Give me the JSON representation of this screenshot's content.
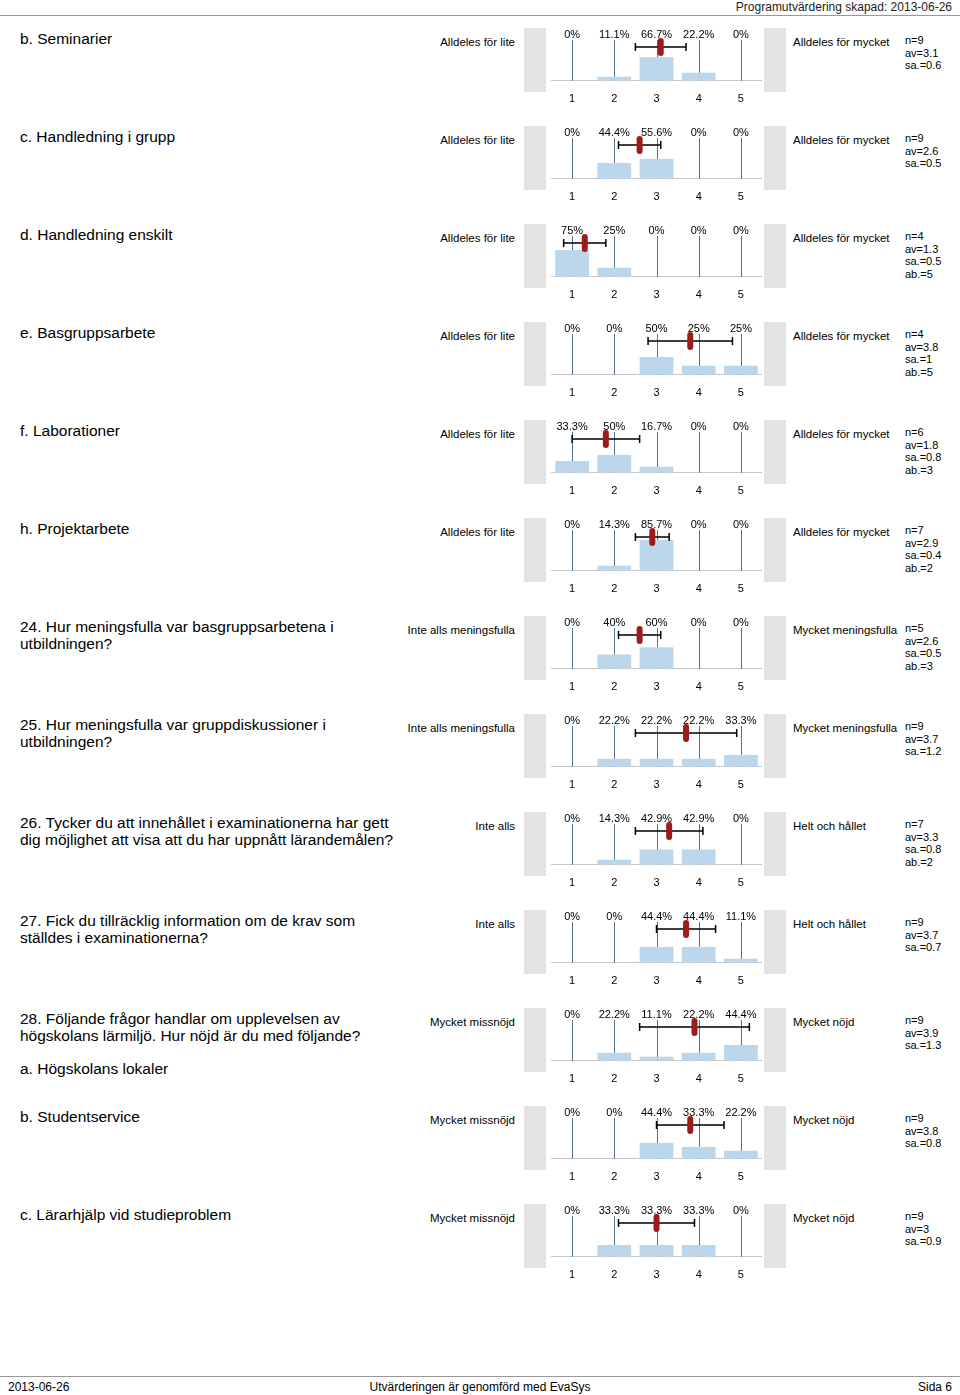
{
  "header": {
    "text": "Programutvärdering skapad: 2013-06-26"
  },
  "footer": {
    "left": "2013-06-26",
    "center": "Utvärderingen är genomförd med EvaSys",
    "right": "Sida 6"
  },
  "stat_labels": {
    "n": "n=",
    "av": "av=",
    "sa": "sa.=",
    "ab": "ab.="
  },
  "chart_data": [
    {
      "type": "bar",
      "title": "b. Seminarier",
      "scale_low": "Alldeles för lite",
      "scale_high": "Alldeles för mycket",
      "x": [
        1,
        2,
        3,
        4,
        5
      ],
      "values": [
        0,
        11.1,
        66.7,
        22.2,
        0
      ],
      "value_labels": [
        "0%",
        "11.1%",
        "66.7%",
        "22.2%",
        "0%"
      ],
      "stats": {
        "n": 9,
        "av": 3.1,
        "sa": 0.6
      }
    },
    {
      "type": "bar",
      "title": "c. Handledning i grupp",
      "scale_low": "Alldeles för lite",
      "scale_high": "Alldeles för mycket",
      "x": [
        1,
        2,
        3,
        4,
        5
      ],
      "values": [
        0,
        44.4,
        55.6,
        0,
        0
      ],
      "value_labels": [
        "0%",
        "44.4%",
        "55.6%",
        "0%",
        "0%"
      ],
      "stats": {
        "n": 9,
        "av": 2.6,
        "sa": 0.5
      }
    },
    {
      "type": "bar",
      "title": "d. Handledning enskilt",
      "scale_low": "Alldeles för lite",
      "scale_high": "Alldeles för mycket",
      "x": [
        1,
        2,
        3,
        4,
        5
      ],
      "values": [
        75,
        25,
        0,
        0,
        0
      ],
      "value_labels": [
        "75%",
        "25%",
        "0%",
        "0%",
        "0%"
      ],
      "stats": {
        "n": 4,
        "av": 1.3,
        "sa": 0.5,
        "ab": 5
      }
    },
    {
      "type": "bar",
      "title": "e. Basgruppsarbete",
      "scale_low": "Alldeles för lite",
      "scale_high": "Alldeles för mycket",
      "x": [
        1,
        2,
        3,
        4,
        5
      ],
      "values": [
        0,
        0,
        50,
        25,
        25
      ],
      "value_labels": [
        "0%",
        "0%",
        "50%",
        "25%",
        "25%"
      ],
      "stats": {
        "n": 4,
        "av": 3.8,
        "sa": 1,
        "ab": 5
      }
    },
    {
      "type": "bar",
      "title": "f. Laborationer",
      "scale_low": "Alldeles för lite",
      "scale_high": "Alldeles för mycket",
      "x": [
        1,
        2,
        3,
        4,
        5
      ],
      "values": [
        33.3,
        50,
        16.7,
        0,
        0
      ],
      "value_labels": [
        "33.3%",
        "50%",
        "16.7%",
        "0%",
        "0%"
      ],
      "stats": {
        "n": 6,
        "av": 1.8,
        "sa": 0.8,
        "ab": 3
      }
    },
    {
      "type": "bar",
      "title": "h. Projektarbete",
      "scale_low": "Alldeles för lite",
      "scale_high": "Alldeles för mycket",
      "x": [
        1,
        2,
        3,
        4,
        5
      ],
      "values": [
        0,
        14.3,
        85.7,
        0,
        0
      ],
      "value_labels": [
        "0%",
        "14.3%",
        "85.7%",
        "0%",
        "0%"
      ],
      "stats": {
        "n": 7,
        "av": 2.9,
        "sa": 0.4,
        "ab": 2
      }
    },
    {
      "type": "bar",
      "title": "24. Hur meningsfulla var basgruppsarbetena i utbildningen?",
      "scale_low": "Inte alls meningsfulla",
      "scale_high": "Mycket meningsfulla",
      "x": [
        1,
        2,
        3,
        4,
        5
      ],
      "values": [
        0,
        40,
        60,
        0,
        0
      ],
      "value_labels": [
        "0%",
        "40%",
        "60%",
        "0%",
        "0%"
      ],
      "stats": {
        "n": 5,
        "av": 2.6,
        "sa": 0.5,
        "ab": 3
      }
    },
    {
      "type": "bar",
      "title": "25. Hur meningsfulla var gruppdiskussioner i utbildningen?",
      "scale_low": "Inte alls meningsfulla",
      "scale_high": "Mycket meningsfulla",
      "x": [
        1,
        2,
        3,
        4,
        5
      ],
      "values": [
        0,
        22.2,
        22.2,
        22.2,
        33.3
      ],
      "value_labels": [
        "0%",
        "22.2%",
        "22.2%",
        "22.2%",
        "33.3%"
      ],
      "stats": {
        "n": 9,
        "av": 3.7,
        "sa": 1.2
      }
    },
    {
      "type": "bar",
      "title": "26. Tycker du att innehållet i examinationerna har gett dig möjlighet att visa att du har uppnått lärandemålen?",
      "scale_low": "Inte alls",
      "scale_high": "Helt och hållet",
      "x": [
        1,
        2,
        3,
        4,
        5
      ],
      "values": [
        0,
        14.3,
        42.9,
        42.9,
        0
      ],
      "value_labels": [
        "0%",
        "14.3%",
        "42.9%",
        "42.9%",
        "0%"
      ],
      "stats": {
        "n": 7,
        "av": 3.3,
        "sa": 0.8,
        "ab": 2
      }
    },
    {
      "type": "bar",
      "title": "27. Fick du tillräcklig information om de krav som ställdes i examinationerna?",
      "scale_low": "Inte alls",
      "scale_high": "Helt och hållet",
      "x": [
        1,
        2,
        3,
        4,
        5
      ],
      "values": [
        0,
        0,
        44.4,
        44.4,
        11.1
      ],
      "value_labels": [
        "0%",
        "0%",
        "44.4%",
        "44.4%",
        "11.1%"
      ],
      "stats": {
        "n": 9,
        "av": 3.7,
        "sa": 0.7
      }
    },
    {
      "type": "bar",
      "title": "28. Följande frågor handlar om upplevelsen av högskolans lärmiljö. Hur nöjd är du med följande?",
      "subtitle": "a. Högskolans lokaler",
      "scale_low": "Mycket missnöjd",
      "scale_high": "Mycket nöjd",
      "x": [
        1,
        2,
        3,
        4,
        5
      ],
      "values": [
        0,
        22.2,
        11.1,
        22.2,
        44.4
      ],
      "value_labels": [
        "0%",
        "22.2%",
        "11.1%",
        "22.2%",
        "44.4%"
      ],
      "stats": {
        "n": 9,
        "av": 3.9,
        "sa": 1.3
      }
    },
    {
      "type": "bar",
      "title": "b. Studentservice",
      "scale_low": "Mycket missnöjd",
      "scale_high": "Mycket nöjd",
      "x": [
        1,
        2,
        3,
        4,
        5
      ],
      "values": [
        0,
        0,
        44.4,
        33.3,
        22.2
      ],
      "value_labels": [
        "0%",
        "0%",
        "44.4%",
        "33.3%",
        "22.2%"
      ],
      "stats": {
        "n": 9,
        "av": 3.8,
        "sa": 0.8
      }
    },
    {
      "type": "bar",
      "title": "c. Lärarhjälp vid studieproblem",
      "scale_low": "Mycket missnöjd",
      "scale_high": "Mycket nöjd",
      "x": [
        1,
        2,
        3,
        4,
        5
      ],
      "values": [
        0,
        33.3,
        33.3,
        33.3,
        0
      ],
      "value_labels": [
        "0%",
        "33.3%",
        "33.3%",
        "33.3%",
        "0%"
      ],
      "stats": {
        "n": 9,
        "av": 3,
        "sa": 0.9
      }
    }
  ],
  "shared": {
    "xlim": [
      0.5,
      5.5
    ],
    "xticks": [
      1,
      2,
      3,
      4,
      5
    ],
    "ylim": [
      0,
      100
    ],
    "grid": true,
    "tick_labels": "x",
    "data_labels": true,
    "color": "#bcd6ec"
  }
}
